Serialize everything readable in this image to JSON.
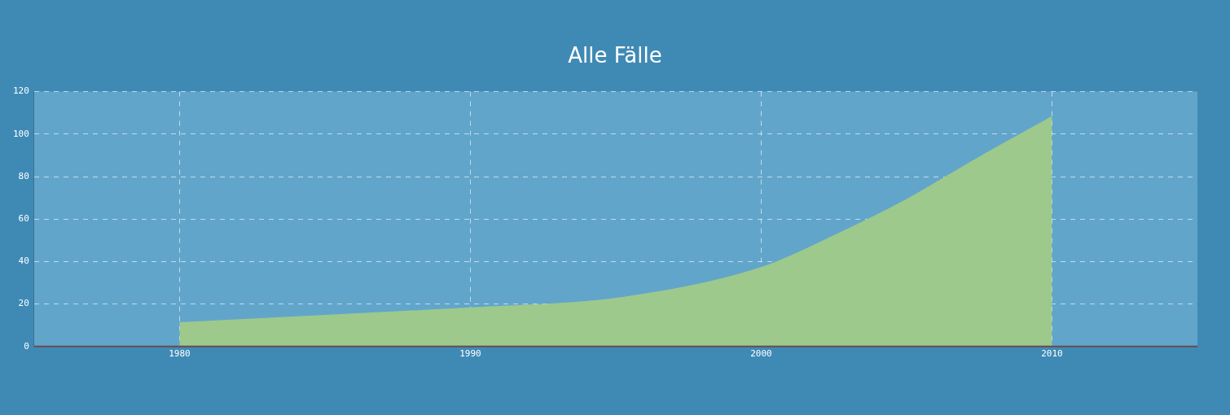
{
  "chart_data": {
    "type": "area",
    "title": "Alle Fälle",
    "x": [
      1980,
      1985,
      1990,
      1995,
      2000,
      2002.5,
      2005,
      2007.5,
      2010
    ],
    "series": [
      {
        "color": "#9dc98c",
        "values": [
          11,
          14.5,
          18,
          22.5,
          37,
          52,
          69,
          89,
          108
        ]
      }
    ],
    "xlim": [
      1975,
      2015
    ],
    "xticks": [
      1980,
      1990,
      2000,
      2010
    ],
    "ylim": [
      0,
      120
    ],
    "yticks": [
      0,
      20,
      40,
      60,
      80,
      100,
      120
    ],
    "grid": true,
    "legend": false,
    "marker": "none"
  }
}
